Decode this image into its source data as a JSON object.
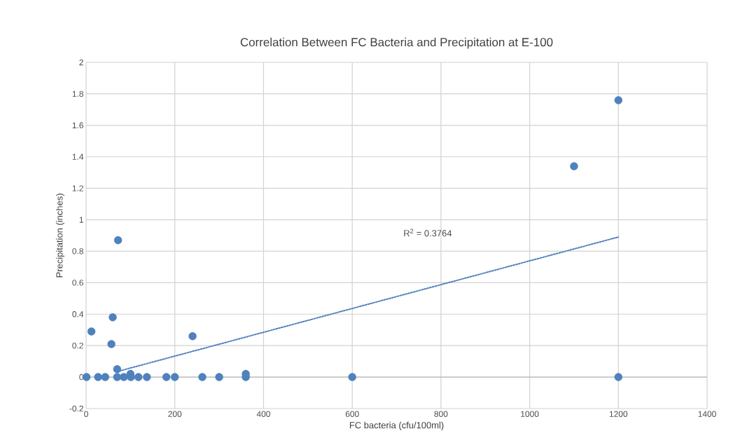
{
  "chart_data": {
    "type": "scatter",
    "title": "Correlation Between FC Bacteria and Precipitation at E-100",
    "xlabel": "FC bacteria (cfu/100ml)",
    "ylabel": "Precipitation (inches)",
    "xlim": [
      0,
      1400
    ],
    "xticks": [
      0,
      200,
      400,
      600,
      800,
      1000,
      1200,
      1400
    ],
    "ylim": [
      -0.2,
      2
    ],
    "yticks": [
      -0.2,
      0,
      0.2,
      0.4,
      0.6,
      0.8,
      1,
      1.2,
      1.4,
      1.6,
      1.8,
      2
    ],
    "grid": true,
    "series": [
      {
        "color": "#4f81bd",
        "marker": "circle",
        "x": [
          1,
          27,
          43,
          70,
          85,
          101,
          118,
          137,
          181,
          200,
          262,
          300,
          360,
          12,
          60,
          57,
          72,
          70,
          100,
          240,
          360,
          600,
          1100,
          1200,
          1200
        ],
        "values": [
          0,
          0,
          0,
          0,
          0,
          0,
          0,
          0,
          0,
          0,
          0,
          0,
          0,
          0.29,
          0.38,
          0.21,
          0.87,
          0.05,
          0.02,
          0.26,
          0.02,
          0,
          1.34,
          1.76,
          0
        ]
      },
      {
        "type": "line",
        "color": "#4f81bd",
        "marker": "none",
        "line_style": "dotted",
        "x": [
          70,
          1200
        ],
        "values": [
          0.035,
          0.89
        ]
      }
    ],
    "annotations": [
      "R$^{2}$ = 0.3764"
    ]
  }
}
